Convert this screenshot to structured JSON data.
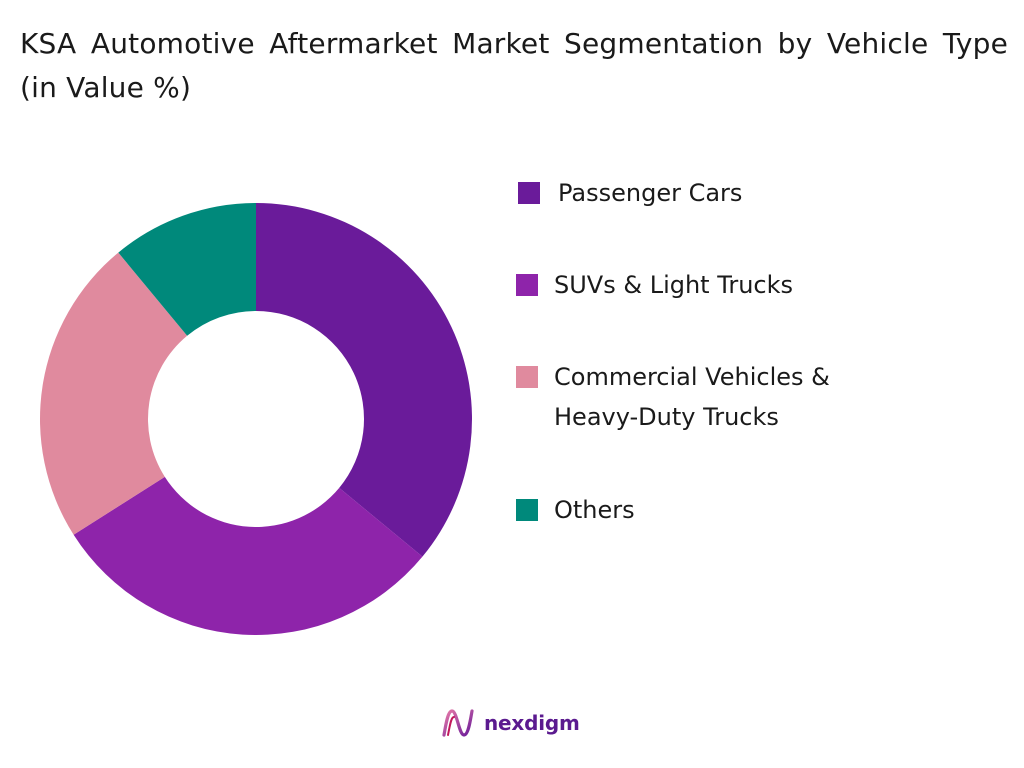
{
  "chart_data": {
    "type": "pie",
    "title": "KSA Automotive Aftermarket Market Segmentation by Vehicle Type (in Value %)",
    "style": "donut",
    "start_angle_deg": 0,
    "direction": "clockwise",
    "legend_position": "right",
    "slices": [
      {
        "label": "Passenger Cars",
        "value": 36,
        "color": "#6a1b9a"
      },
      {
        "label": "SUVs & Light Trucks",
        "value": 30,
        "color": "#8e24aa"
      },
      {
        "label": "Commercial Vehicles & Heavy-Duty Trucks",
        "value": 23,
        "color": "#e08a9e"
      },
      {
        "label": "Others",
        "value": 11,
        "color": "#00897b"
      }
    ]
  },
  "legend": {
    "items": [
      {
        "label": "Passenger Cars",
        "color": "#6a1b9a"
      },
      {
        "label": "SUVs & Light Trucks",
        "color": "#8e24aa"
      },
      {
        "label": "Commercial Vehicles &\nHeavy-Duty Trucks",
        "color": "#e08a9e"
      },
      {
        "label": "Others",
        "color": "#00897b"
      }
    ]
  },
  "logo": {
    "text": "nexdigm",
    "color": "#5b1a8f",
    "icon": "nexdigm-logo-icon"
  }
}
